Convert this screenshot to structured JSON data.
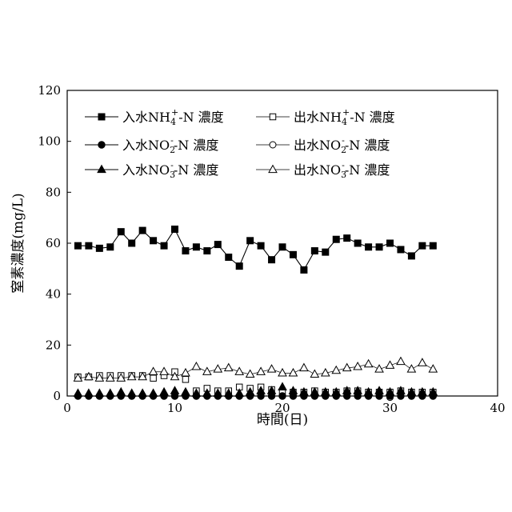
{
  "chart_data": {
    "type": "scatter",
    "xlabel": "時間(日)",
    "ylabel": "窒素濃度(mg/L)",
    "xlim": [
      0,
      40
    ],
    "ylim": [
      0,
      120
    ],
    "x_ticks": [
      0,
      10,
      20,
      30,
      40
    ],
    "y_ticks": [
      0,
      20,
      40,
      60,
      80,
      100,
      120
    ],
    "grid": false,
    "legend_placement": "top",
    "x": [
      1,
      2,
      3,
      4,
      5,
      6,
      7,
      8,
      9,
      10,
      11,
      12,
      13,
      14,
      15,
      16,
      17,
      18,
      19,
      20,
      21,
      22,
      23,
      24,
      25,
      26,
      27,
      28,
      29,
      30,
      31,
      32,
      33,
      34
    ],
    "series": [
      {
        "name": "入水NH4+-N 濃度",
        "legend": {
          "prefix": "入水NH",
          "sub": "4",
          "sup": "+",
          "suffix": "-N 濃度"
        },
        "marker": "square-filled",
        "line": true,
        "values": [
          59,
          59,
          58,
          58.5,
          64.5,
          60,
          65,
          61,
          59,
          65.5,
          57,
          58.5,
          57,
          59.5,
          54.5,
          51,
          61,
          59,
          53.5,
          58.5,
          55.5,
          49.5,
          57,
          56.5,
          61.5,
          62,
          60,
          58.5,
          58.5,
          60,
          57.5,
          55,
          59,
          59
        ]
      },
      {
        "name": "出水NH4+-N 濃度",
        "legend": {
          "prefix": "出水NH",
          "sub": "4",
          "sup": "+",
          "suffix": "-N 濃度"
        },
        "marker": "square-open",
        "line": false,
        "values": [
          7.5,
          7.5,
          8,
          8,
          8,
          8,
          8,
          7,
          8,
          9.5,
          6.5,
          2,
          3,
          2,
          2,
          3.5,
          3,
          3.5,
          2.5,
          1.5,
          1.5,
          1.5,
          2,
          1.5,
          1.5,
          2,
          2,
          1.5,
          1.5,
          1.5,
          2,
          1.5,
          1.5,
          1.5
        ]
      },
      {
        "name": "入水NO2--N 濃度",
        "legend": {
          "prefix": "入水NO",
          "sub": "2",
          "sup": "-",
          "suffix": "-N 濃度"
        },
        "marker": "circle-filled",
        "line": false,
        "values": [
          0,
          0,
          0,
          0,
          0,
          0,
          0,
          0,
          0,
          0,
          0,
          0,
          0,
          0,
          0,
          0,
          0,
          0,
          0,
          0,
          0,
          0,
          0,
          0,
          0,
          0,
          0,
          0,
          0,
          0,
          0,
          0,
          0,
          0
        ]
      },
      {
        "name": "出水NO2--N 濃度",
        "legend": {
          "prefix": "出水NO",
          "sub": "2",
          "sup": "-",
          "suffix": "-N 濃度"
        },
        "marker": "circle-open",
        "line": false,
        "values": [
          0,
          0,
          0,
          0,
          0,
          0,
          0,
          0,
          0,
          0,
          0,
          0,
          0,
          0,
          0,
          0,
          0,
          0,
          0,
          0,
          0,
          0,
          0,
          0,
          0,
          0,
          0,
          0,
          0,
          -0.5,
          0,
          0,
          0,
          0
        ]
      },
      {
        "name": "入水NO3--N 濃度",
        "legend": {
          "prefix": "入水NO",
          "sub": "3",
          "sup": "-",
          "suffix": "-N 濃度"
        },
        "marker": "triangle-filled",
        "line": false,
        "values": [
          1,
          1,
          1,
          1,
          1.5,
          1,
          1,
          1,
          1.5,
          2,
          1.5,
          1,
          1,
          1,
          1,
          1,
          1.5,
          2,
          2,
          3.5,
          2,
          1.5,
          1.5,
          1.5,
          1.5,
          2,
          2,
          1.5,
          2,
          1.5,
          2,
          1.5,
          1.5,
          1.5
        ]
      },
      {
        "name": "出水NO3--N 濃度",
        "legend": {
          "prefix": "出水NO",
          "sub": "3",
          "sup": "-",
          "suffix": "-N 濃度"
        },
        "marker": "triangle-open",
        "line": true,
        "values": [
          7,
          7.5,
          7,
          7,
          7,
          7.5,
          7.5,
          9.5,
          9.5,
          7.5,
          9,
          11.5,
          9.5,
          10.5,
          11,
          9.5,
          8.5,
          9.5,
          10.5,
          9,
          9,
          11,
          8.5,
          9,
          10,
          11,
          11.5,
          12.5,
          10.5,
          12,
          13.5,
          10.5,
          13,
          10.5
        ]
      }
    ]
  }
}
